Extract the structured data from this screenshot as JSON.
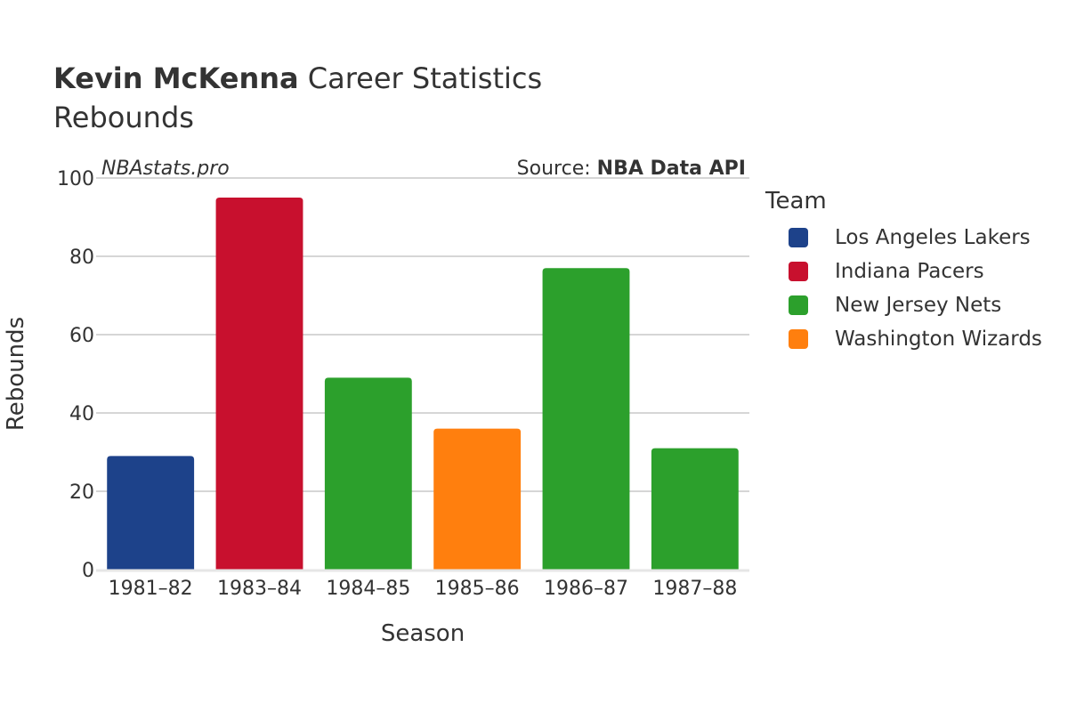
{
  "header": {
    "player": "Kevin McKenna",
    "title_suffix": "Career Statistics",
    "subtitle": "Rebounds",
    "watermark": "NBAstats.pro",
    "source_prefix": "Source:",
    "source_name": "NBA Data API"
  },
  "legend": {
    "title": "Team",
    "items": [
      {
        "label": "Los Angeles Lakers",
        "color": "#1d428a"
      },
      {
        "label": "Indiana Pacers",
        "color": "#c8102e"
      },
      {
        "label": "New Jersey Nets",
        "color": "#2ca02c"
      },
      {
        "label": "Washington Wizards",
        "color": "#ff7f0e"
      }
    ]
  },
  "chart_data": {
    "type": "bar",
    "xlabel": "Season",
    "ylabel": "Rebounds",
    "ylim": [
      0,
      100
    ],
    "yticks": [
      0,
      20,
      40,
      60,
      80,
      100
    ],
    "grid": true,
    "legend_position": "right",
    "categories": [
      "1981–82",
      "1983–84",
      "1984–85",
      "1985–86",
      "1986–87",
      "1987–88"
    ],
    "values": [
      29,
      95,
      49,
      36,
      77,
      31
    ],
    "teams": [
      "Los Angeles Lakers",
      "Indiana Pacers",
      "New Jersey Nets",
      "Washington Wizards",
      "New Jersey Nets",
      "New Jersey Nets"
    ],
    "colors": [
      "#1d428a",
      "#c8102e",
      "#2ca02c",
      "#ff7f0e",
      "#2ca02c",
      "#2ca02c"
    ]
  }
}
